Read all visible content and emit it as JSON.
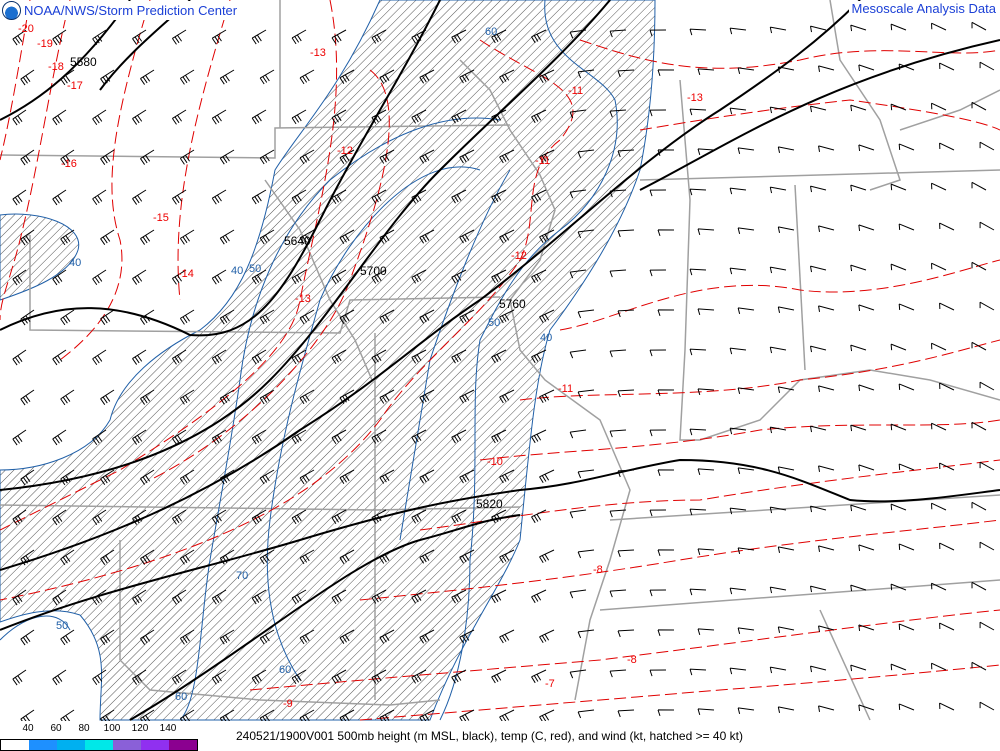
{
  "header": {
    "left_title": "NOAA/NWS/Storm Prediction Center",
    "right_title": "Mesoscale Analysis Data",
    "logo_icon": "noaa-logo-icon"
  },
  "footer": {
    "caption": "240521/1900V001 500mb height (m MSL, black), temp (C, red), and wind (kt, hatched >= 40 kt)",
    "scale_labels": [
      "40",
      "60",
      "80",
      "100",
      "120",
      "140"
    ],
    "scale_colors": [
      "#ffffff",
      "#1e90ff",
      "#00b0f0",
      "#00e8e8",
      "#8a60d8",
      "#9030f0",
      "#8b0090"
    ]
  },
  "colors": {
    "height": "#000000",
    "temp": "#e00000",
    "wind_isotach": "#2160a8",
    "borders": "#a0a0a0",
    "hatch": "#606060"
  },
  "labels": {
    "heights": [
      "5580",
      "5640",
      "5700",
      "5760",
      "5820"
    ],
    "temps": [
      "-20",
      "-19",
      "-18",
      "-17",
      "-16",
      "-15",
      "-14",
      "-13",
      "-12",
      "-13",
      "-11",
      "-13",
      "-11",
      "-12",
      "-11",
      "-10",
      "-8",
      "-8",
      "-7",
      "-9"
    ],
    "winds": [
      "60",
      "40",
      "40",
      "50",
      "50",
      "40",
      "70",
      "50",
      "60",
      "60"
    ]
  }
}
